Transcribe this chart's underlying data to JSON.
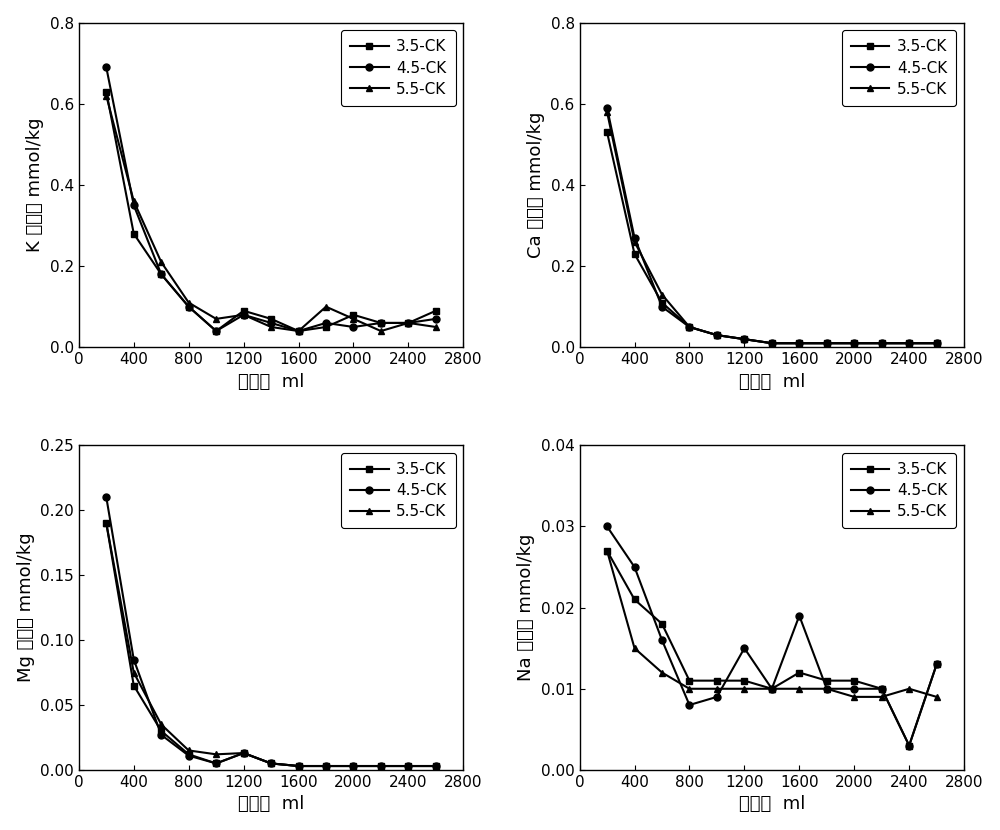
{
  "x": [
    200,
    400,
    600,
    800,
    1000,
    1200,
    1400,
    1600,
    1800,
    2000,
    2200,
    2400,
    2600
  ],
  "K_ck35": [
    0.63,
    0.28,
    0.18,
    0.1,
    0.04,
    0.09,
    0.07,
    0.04,
    0.05,
    0.08,
    0.06,
    0.06,
    0.09
  ],
  "K_ck45": [
    0.69,
    0.35,
    0.18,
    0.1,
    0.04,
    0.08,
    0.06,
    0.04,
    0.06,
    0.05,
    0.06,
    0.06,
    0.07
  ],
  "K_ck55": [
    0.62,
    0.36,
    0.21,
    0.11,
    0.07,
    0.08,
    0.05,
    0.04,
    0.1,
    0.07,
    0.04,
    0.06,
    0.05
  ],
  "Ca_ck35": [
    0.53,
    0.23,
    0.11,
    0.05,
    0.03,
    0.02,
    0.01,
    0.01,
    0.01,
    0.01,
    0.01,
    0.01,
    0.01
  ],
  "Ca_ck45": [
    0.59,
    0.27,
    0.1,
    0.05,
    0.03,
    0.02,
    0.01,
    0.01,
    0.01,
    0.01,
    0.01,
    0.01,
    0.01
  ],
  "Ca_ck55": [
    0.58,
    0.26,
    0.13,
    0.05,
    0.03,
    0.02,
    0.01,
    0.01,
    0.01,
    0.01,
    0.01,
    0.01,
    0.01
  ],
  "Mg_ck35": [
    0.19,
    0.065,
    0.03,
    0.012,
    0.005,
    0.013,
    0.005,
    0.003,
    0.003,
    0.003,
    0.003,
    0.003,
    0.003
  ],
  "Mg_ck45": [
    0.21,
    0.085,
    0.027,
    0.011,
    0.005,
    0.013,
    0.005,
    0.003,
    0.003,
    0.003,
    0.003,
    0.003,
    0.003
  ],
  "Mg_ck55": [
    0.19,
    0.075,
    0.035,
    0.015,
    0.012,
    0.013,
    0.005,
    0.003,
    0.003,
    0.003,
    0.003,
    0.003,
    0.003
  ],
  "Na_ck35": [
    0.027,
    0.021,
    0.018,
    0.011,
    0.011,
    0.011,
    0.01,
    0.012,
    0.011,
    0.011,
    0.01,
    0.003,
    0.013
  ],
  "Na_ck45": [
    0.03,
    0.025,
    0.016,
    0.008,
    0.009,
    0.015,
    0.01,
    0.019,
    0.01,
    0.01,
    0.01,
    0.003,
    0.013
  ],
  "Na_ck55": [
    0.027,
    0.015,
    0.012,
    0.01,
    0.01,
    0.01,
    0.01,
    0.01,
    0.01,
    0.009,
    0.009,
    0.01,
    0.009
  ],
  "K_ylabel_top": "K",
  "K_ylabel_mid": "释放量",
  "K_ylabel_bot": "mmol/kg",
  "Ca_ylabel_top": "Ca",
  "Ca_ylabel_mid": "释放量",
  "Ca_ylabel_bot": "mmol/kg",
  "Mg_ylabel_top": "Mg",
  "Mg_ylabel_mid": "释放量",
  "Mg_ylabel_bot": "mmol/kg",
  "Na_ylabel_top": "Na",
  "Na_ylabel_mid": "释放量",
  "Na_ylabel_bot": "mmol/kg",
  "xlabel": "淡溶量  ml",
  "legend_labels": [
    "3.5-CK",
    "4.5-CK",
    "5.5-CK"
  ],
  "K_ylim": [
    0,
    0.8
  ],
  "Ca_ylim": [
    0,
    0.8
  ],
  "Mg_ylim": [
    0,
    0.25
  ],
  "Na_ylim": [
    0,
    0.04
  ],
  "xlim": [
    0,
    2800
  ],
  "xticks": [
    0,
    400,
    800,
    1200,
    1600,
    2000,
    2400,
    2800
  ],
  "K_yticks": [
    0.0,
    0.2,
    0.4,
    0.6,
    0.8
  ],
  "Ca_yticks": [
    0.0,
    0.2,
    0.4,
    0.6,
    0.8
  ],
  "Mg_yticks": [
    0.0,
    0.05,
    0.1,
    0.15,
    0.2,
    0.25
  ],
  "Na_yticks": [
    0.0,
    0.01,
    0.02,
    0.03,
    0.04
  ],
  "line_color": "#000000",
  "marker_35": "s",
  "marker_45": "o",
  "marker_55": "^",
  "linewidth": 1.5,
  "markersize": 5,
  "tick_fontsize": 11,
  "label_fontsize": 13,
  "legend_fontsize": 11
}
